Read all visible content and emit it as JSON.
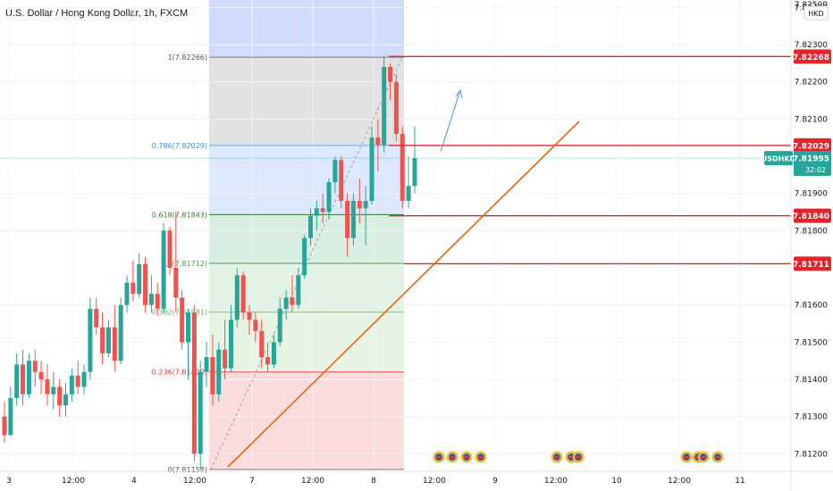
{
  "title": "U.S. Dollar / Hong Kong Dollar, 1h, FXCM",
  "currency_badge": "HKD",
  "price_badge": {
    "symbol": "USDHKD",
    "price": "7.81995",
    "countdown": "32:02",
    "color": "#26a69a"
  },
  "colors": {
    "up": "#26a69a",
    "down": "#ef5350",
    "level_line": "#e3242b",
    "trend": "#e8650e",
    "projection": "#4f8fd6"
  },
  "chart_data": {
    "type": "candlestick",
    "title": "U.S. Dollar / Hong Kong Dollar, 1h, FXCM",
    "ylim": [
      7.8116,
      7.8236
    ],
    "y_ticks": [
      "7.82400",
      "7.82300",
      "7.82200",
      "7.82100",
      "7.81900",
      "7.81800",
      "7.81600",
      "7.81500",
      "7.81400",
      "7.81300",
      "7.81200"
    ],
    "y_ticks_top": "7.82500",
    "x_ticks": [
      "3",
      "12:00",
      "4",
      "12:00",
      "7",
      "12:00",
      "8",
      "12:00",
      "9",
      "12:00",
      "10",
      "12:00",
      "11"
    ],
    "price_levels": [
      "7.82268",
      "7.82029",
      "7.81840",
      "7.81711"
    ],
    "fibonacci": [
      {
        "label": "1(7.82266)",
        "value": 7.82266
      },
      {
        "label": "0.786(7.82029)",
        "value": 7.82029
      },
      {
        "label": "0.618(7.81843)",
        "value": 7.81843
      },
      {
        "label": "0.5(7.81712)",
        "value": 7.81712
      },
      {
        "label": "0.382(7.81581)",
        "value": 7.81581
      },
      {
        "label": "0.236(7.81420)",
        "value": 7.8142
      },
      {
        "label": "0(7.81158)",
        "value": 7.81158
      }
    ],
    "candles": [
      {
        "o": 7.813,
        "h": 7.8134,
        "l": 7.8123,
        "c": 7.8125
      },
      {
        "o": 7.8125,
        "h": 7.8138,
        "l": 7.8125,
        "c": 7.8135
      },
      {
        "o": 7.8135,
        "h": 7.8147,
        "l": 7.8133,
        "c": 7.8144
      },
      {
        "o": 7.8144,
        "h": 7.8148,
        "l": 7.8133,
        "c": 7.8136
      },
      {
        "o": 7.8136,
        "h": 7.8147,
        "l": 7.8135,
        "c": 7.8145
      },
      {
        "o": 7.8145,
        "h": 7.8148,
        "l": 7.8138,
        "c": 7.8142
      },
      {
        "o": 7.8142,
        "h": 7.8145,
        "l": 7.8136,
        "c": 7.814
      },
      {
        "o": 7.814,
        "h": 7.8144,
        "l": 7.8133,
        "c": 7.8136
      },
      {
        "o": 7.8136,
        "h": 7.8142,
        "l": 7.8132,
        "c": 7.8138
      },
      {
        "o": 7.8138,
        "h": 7.814,
        "l": 7.813,
        "c": 7.8133
      },
      {
        "o": 7.8133,
        "h": 7.8139,
        "l": 7.813,
        "c": 7.8136
      },
      {
        "o": 7.8136,
        "h": 7.8143,
        "l": 7.8134,
        "c": 7.8141
      },
      {
        "o": 7.8141,
        "h": 7.8145,
        "l": 7.8136,
        "c": 7.8138
      },
      {
        "o": 7.8138,
        "h": 7.8144,
        "l": 7.8136,
        "c": 7.8142
      },
      {
        "o": 7.8142,
        "h": 7.8162,
        "l": 7.814,
        "c": 7.8159
      },
      {
        "o": 7.8159,
        "h": 7.8162,
        "l": 7.8152,
        "c": 7.8154
      },
      {
        "o": 7.8154,
        "h": 7.8158,
        "l": 7.8144,
        "c": 7.8147
      },
      {
        "o": 7.8147,
        "h": 7.8156,
        "l": 7.8146,
        "c": 7.8154
      },
      {
        "o": 7.8154,
        "h": 7.816,
        "l": 7.8142,
        "c": 7.8145
      },
      {
        "o": 7.8145,
        "h": 7.8162,
        "l": 7.8144,
        "c": 7.816
      },
      {
        "o": 7.816,
        "h": 7.8168,
        "l": 7.8158,
        "c": 7.8166
      },
      {
        "o": 7.8166,
        "h": 7.8172,
        "l": 7.8161,
        "c": 7.8163
      },
      {
        "o": 7.8163,
        "h": 7.8174,
        "l": 7.8162,
        "c": 7.8171
      },
      {
        "o": 7.8171,
        "h": 7.8173,
        "l": 7.8158,
        "c": 7.816
      },
      {
        "o": 7.816,
        "h": 7.8168,
        "l": 7.8158,
        "c": 7.8163
      },
      {
        "o": 7.8163,
        "h": 7.8166,
        "l": 7.8157,
        "c": 7.8159
      },
      {
        "o": 7.8159,
        "h": 7.8182,
        "l": 7.8158,
        "c": 7.818
      },
      {
        "o": 7.818,
        "h": 7.8181,
        "l": 7.8168,
        "c": 7.817
      },
      {
        "o": 7.817,
        "h": 7.8185,
        "l": 7.8158,
        "c": 7.8162
      },
      {
        "o": 7.8162,
        "h": 7.8164,
        "l": 7.8148,
        "c": 7.815
      },
      {
        "o": 7.815,
        "h": 7.8159,
        "l": 7.814,
        "c": 7.8158
      },
      {
        "o": 7.8158,
        "h": 7.816,
        "l": 7.8118,
        "c": 7.812
      },
      {
        "o": 7.812,
        "h": 7.8145,
        "l": 7.8116,
        "c": 7.8142
      },
      {
        "o": 7.8142,
        "h": 7.815,
        "l": 7.8138,
        "c": 7.8146
      },
      {
        "o": 7.8146,
        "h": 7.8152,
        "l": 7.8133,
        "c": 7.8136
      },
      {
        "o": 7.8136,
        "h": 7.815,
        "l": 7.8134,
        "c": 7.8148
      },
      {
        "o": 7.8148,
        "h": 7.8156,
        "l": 7.814,
        "c": 7.8143
      },
      {
        "o": 7.8143,
        "h": 7.816,
        "l": 7.8142,
        "c": 7.8156
      },
      {
        "o": 7.8156,
        "h": 7.817,
        "l": 7.8154,
        "c": 7.8168
      },
      {
        "o": 7.8168,
        "h": 7.8169,
        "l": 7.8156,
        "c": 7.8158
      },
      {
        "o": 7.8158,
        "h": 7.816,
        "l": 7.8152,
        "c": 7.8156
      },
      {
        "o": 7.8156,
        "h": 7.8158,
        "l": 7.815,
        "c": 7.8153
      },
      {
        "o": 7.8153,
        "h": 7.8156,
        "l": 7.8143,
        "c": 7.8146
      },
      {
        "o": 7.8146,
        "h": 7.815,
        "l": 7.8142,
        "c": 7.8144
      },
      {
        "o": 7.8144,
        "h": 7.8152,
        "l": 7.8143,
        "c": 7.815
      },
      {
        "o": 7.815,
        "h": 7.8162,
        "l": 7.8149,
        "c": 7.8159
      },
      {
        "o": 7.8159,
        "h": 7.8164,
        "l": 7.8156,
        "c": 7.8162
      },
      {
        "o": 7.8162,
        "h": 7.8168,
        "l": 7.8158,
        "c": 7.816
      },
      {
        "o": 7.816,
        "h": 7.817,
        "l": 7.8159,
        "c": 7.8168
      },
      {
        "o": 7.8168,
        "h": 7.8179,
        "l": 7.8167,
        "c": 7.8178
      },
      {
        "o": 7.8178,
        "h": 7.8186,
        "l": 7.8176,
        "c": 7.8184
      },
      {
        "o": 7.8184,
        "h": 7.8188,
        "l": 7.818,
        "c": 7.8186
      },
      {
        "o": 7.8186,
        "h": 7.819,
        "l": 7.8182,
        "c": 7.8185
      },
      {
        "o": 7.8185,
        "h": 7.8194,
        "l": 7.8183,
        "c": 7.8193
      },
      {
        "o": 7.8193,
        "h": 7.82,
        "l": 7.819,
        "c": 7.8199
      },
      {
        "o": 7.8199,
        "h": 7.82,
        "l": 7.8186,
        "c": 7.8188
      },
      {
        "o": 7.8188,
        "h": 7.819,
        "l": 7.8173,
        "c": 7.8178
      },
      {
        "o": 7.8178,
        "h": 7.819,
        "l": 7.8176,
        "c": 7.8188
      },
      {
        "o": 7.8188,
        "h": 7.8194,
        "l": 7.8182,
        "c": 7.8186
      },
      {
        "o": 7.8186,
        "h": 7.8192,
        "l": 7.8176,
        "c": 7.8188
      },
      {
        "o": 7.8188,
        "h": 7.8208,
        "l": 7.8187,
        "c": 7.8205
      },
      {
        "o": 7.8205,
        "h": 7.821,
        "l": 7.8196,
        "c": 7.8203
      },
      {
        "o": 7.8203,
        "h": 7.8227,
        "l": 7.8201,
        "c": 7.8224
      },
      {
        "o": 7.8224,
        "h": 7.8225,
        "l": 7.8215,
        "c": 7.822
      },
      {
        "o": 7.822,
        "h": 7.8222,
        "l": 7.8204,
        "c": 7.8206
      },
      {
        "o": 7.8206,
        "h": 7.8208,
        "l": 7.8186,
        "c": 7.8188
      },
      {
        "o": 7.8188,
        "h": 7.82,
        "l": 7.8186,
        "c": 7.8192
      },
      {
        "o": 7.8192,
        "h": 7.8208,
        "l": 7.819,
        "c": 7.81995
      }
    ]
  }
}
